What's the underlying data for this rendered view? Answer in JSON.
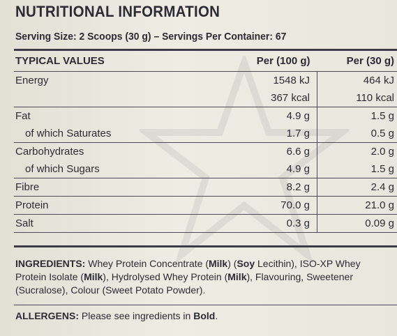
{
  "title": "NUTRITIONAL INFORMATION",
  "serving": "Serving Size: 2 Scoops (30 g)  –  Servings Per Container: 67",
  "table": {
    "headers": [
      "TYPICAL VALUES",
      "Per (100 g)",
      "Per (30 g)"
    ],
    "rows": [
      {
        "name": "Energy",
        "per100": "1548 kJ",
        "per30": "464 kJ"
      },
      {
        "name": "",
        "per100": "367 kcal",
        "per30": "110 kcal"
      },
      {
        "name": "Fat",
        "per100": "4.9 g",
        "per30": "1.5 g"
      },
      {
        "name": "of which Saturates",
        "per100": "1.7 g",
        "per30": "0.5 g"
      },
      {
        "name": "Carbohydrates",
        "per100": "6.6 g",
        "per30": "2.0 g"
      },
      {
        "name": "of which Sugars",
        "per100": "4.9 g",
        "per30": "1.5 g"
      },
      {
        "name": "Fibre",
        "per100": "8.2 g",
        "per30": "2.4 g"
      },
      {
        "name": "Protein",
        "per100": "70.0 g",
        "per30": "21.0 g"
      },
      {
        "name": "Salt",
        "per100": "0.3 g",
        "per30": "0.09 g"
      }
    ]
  },
  "ingredients": {
    "label": "INGREDIENTS:",
    "segments": [
      " Whey Protein Concentrate (",
      "Milk",
      ") (",
      "Soy",
      " Lecithin), ISO-XP Whey Protein Isolate (",
      "Milk",
      "), Hydrolysed Whey Protein (",
      "Milk",
      "), Flavouring, Sweetener (Sucralose), Colour (Sweet Potato Powder)."
    ]
  },
  "allergens": {
    "label": "ALLERGENS:",
    "text": " Please see ingredients in ",
    "bold": "Bold",
    "end": "."
  }
}
